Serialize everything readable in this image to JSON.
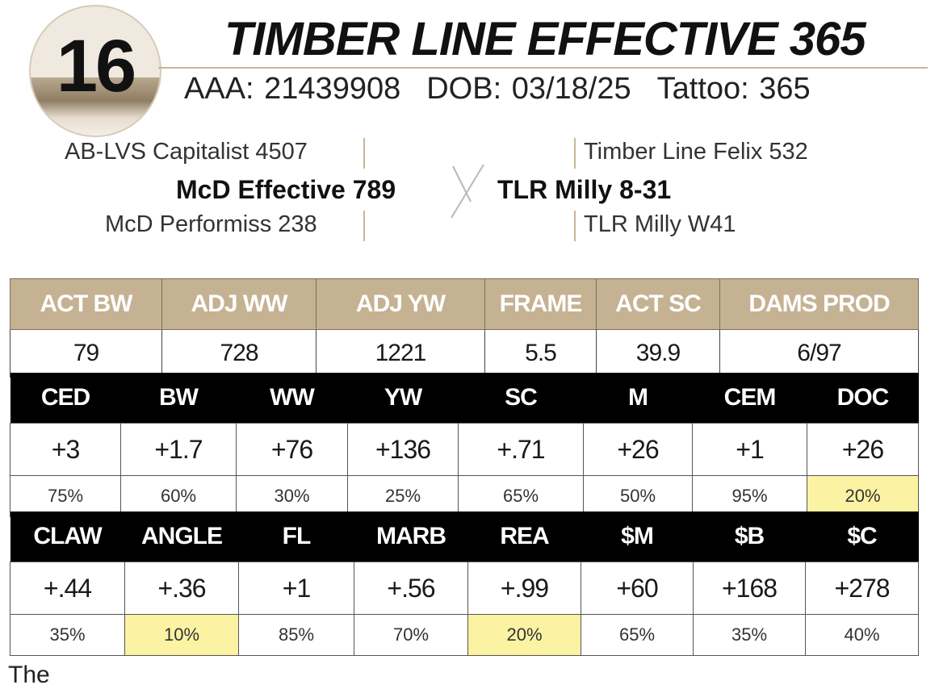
{
  "lot": {
    "number": "16"
  },
  "animal": {
    "name": "TIMBER LINE EFFECTIVE 365",
    "aaa": "AAA: 21439908",
    "dob": "DOB: 03/18/25",
    "tattoo": "Tattoo: 365"
  },
  "pedigree": {
    "sire_sire": "AB-LVS Capitalist 4507",
    "sire": "McD Effective 789",
    "sire_dam": "McD Performiss 238",
    "dam_sire": "Timber Line Felix 532",
    "dam": "TLR Milly 8-31",
    "dam_dam": "TLR Milly W41"
  },
  "actuals": {
    "headers": [
      "ACT BW",
      "ADJ WW",
      "ADJ YW",
      "FRAME",
      "ACT SC",
      "DAMS PROD"
    ],
    "values": [
      "79",
      "728",
      "1221",
      "5.5",
      "39.9",
      "6/97"
    ]
  },
  "epd1": {
    "headers": [
      "CED",
      "BW",
      "WW",
      "YW",
      "SC",
      "M",
      "CEM",
      "DOC"
    ],
    "values": [
      "+3",
      "+1.7",
      "+76",
      "+136",
      "+.71",
      "+26",
      "+1",
      "+26"
    ],
    "percentiles": [
      "75%",
      "60%",
      "30%",
      "25%",
      "65%",
      "50%",
      "95%",
      "20%"
    ]
  },
  "epd2": {
    "headers": [
      "CLAW",
      "ANGLE",
      "FL",
      "MARB",
      "REA",
      "$M",
      "$B",
      "$C"
    ],
    "values": [
      "+.44",
      "+.36",
      "+1",
      "+.56",
      "+.99",
      "+60",
      "+168",
      "+278"
    ],
    "percentiles": [
      "35%",
      "10%",
      "85%",
      "70%",
      "20%",
      "65%",
      "35%",
      "40%"
    ]
  },
  "colors": {
    "tan": "#c5b293",
    "highlight": "#fbf3a3",
    "black": "#000000"
  },
  "footer": {
    "text": "The"
  }
}
